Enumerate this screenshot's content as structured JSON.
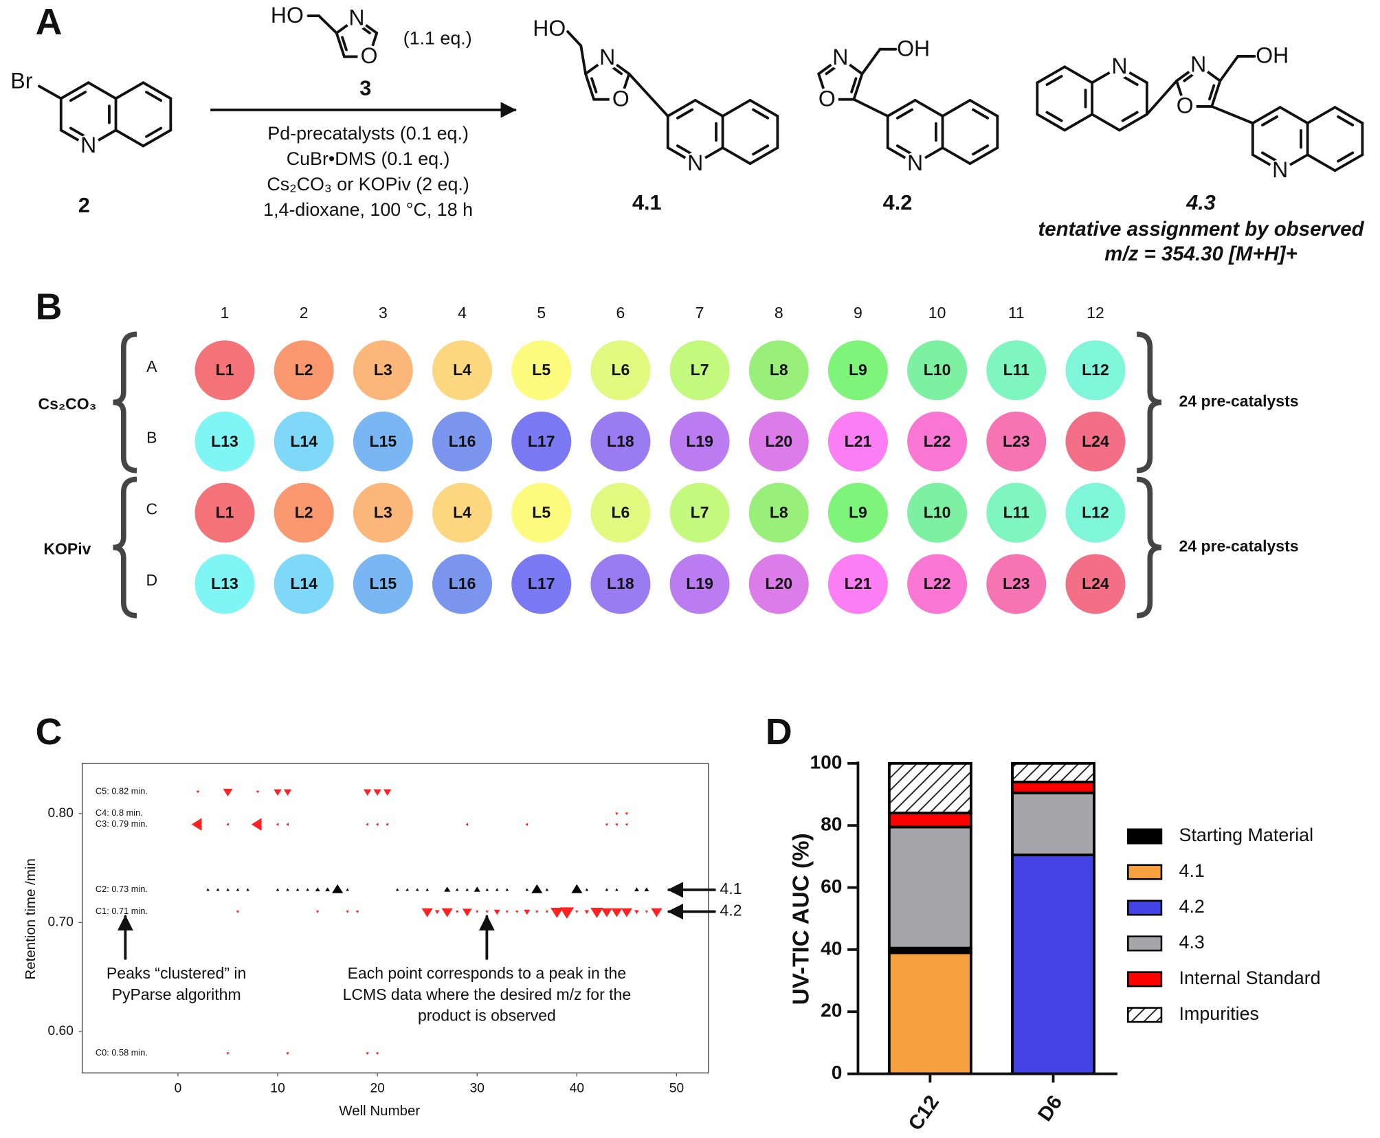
{
  "panel_a": {
    "label": "A",
    "starting_material": {
      "atoms": [
        "Br",
        "N"
      ],
      "number": "2"
    },
    "reagent": {
      "atoms": [
        "HO",
        "N",
        "O"
      ],
      "number": "3",
      "equiv": "(1.1 eq.)"
    },
    "conditions": [
      "Pd-precatalysts (0.1 eq.)",
      "CuBr•DMS (0.1 eq.)",
      "Cs₂CO₃ or KOPiv (2 eq.)",
      "1,4-dioxane, 100 °C, 18 h"
    ],
    "products": [
      {
        "atoms": [
          "HO",
          "N",
          "O",
          "N"
        ],
        "number": "4.1"
      },
      {
        "atoms": [
          "N",
          "OH",
          "O",
          "N"
        ],
        "number": "4.2"
      },
      {
        "atoms": [
          "N",
          "N",
          "OH",
          "O",
          "N"
        ],
        "number": "4.3",
        "note": [
          "tentative assignment by observed",
          "m/z = 354.30 [M+H]+"
        ]
      }
    ]
  },
  "panel_b": {
    "label": "B",
    "columns": [
      "1",
      "2",
      "3",
      "4",
      "5",
      "6",
      "7",
      "8",
      "9",
      "10",
      "11",
      "12"
    ],
    "rows": [
      "A",
      "B",
      "C",
      "D"
    ],
    "groups": [
      {
        "base": "Cs₂CO₃",
        "note": "24 pre-catalysts"
      },
      {
        "base": "KOPiv",
        "note": "24 pre-catalysts"
      }
    ],
    "wells": [
      [
        {
          "label": "L1",
          "color": "#f47378"
        },
        {
          "label": "L2",
          "color": "#f9986f"
        },
        {
          "label": "L3",
          "color": "#fbb679"
        },
        {
          "label": "L4",
          "color": "#fcd77f"
        },
        {
          "label": "L5",
          "color": "#fdfb7e"
        },
        {
          "label": "L6",
          "color": "#e0f97e"
        },
        {
          "label": "L7",
          "color": "#c3f97d"
        },
        {
          "label": "L8",
          "color": "#98ef7a"
        },
        {
          "label": "L9",
          "color": "#7ef57a"
        },
        {
          "label": "L10",
          "color": "#7ef0a2"
        },
        {
          "label": "L11",
          "color": "#7ff5c0"
        },
        {
          "label": "L12",
          "color": "#7ff5d9"
        }
      ],
      [
        {
          "label": "L13",
          "color": "#7ff5f5"
        },
        {
          "label": "L14",
          "color": "#7fd8f7"
        },
        {
          "label": "L15",
          "color": "#7ab5f4"
        },
        {
          "label": "L16",
          "color": "#7b94ee"
        },
        {
          "label": "L17",
          "color": "#7b78f3"
        },
        {
          "label": "L18",
          "color": "#9a7bf2"
        },
        {
          "label": "L19",
          "color": "#bb7cf2"
        },
        {
          "label": "L20",
          "color": "#dc7ce9"
        },
        {
          "label": "L21",
          "color": "#fb7ef4"
        },
        {
          "label": "L22",
          "color": "#f977d2"
        },
        {
          "label": "L23",
          "color": "#f774b2"
        },
        {
          "label": "L24",
          "color": "#f26f86"
        }
      ],
      [
        {
          "label": "L1",
          "color": "#f47378"
        },
        {
          "label": "L2",
          "color": "#f9986f"
        },
        {
          "label": "L3",
          "color": "#fbb679"
        },
        {
          "label": "L4",
          "color": "#fcd77f"
        },
        {
          "label": "L5",
          "color": "#fdfb7e"
        },
        {
          "label": "L6",
          "color": "#e0f97e"
        },
        {
          "label": "L7",
          "color": "#c3f97d"
        },
        {
          "label": "L8",
          "color": "#98ef7a"
        },
        {
          "label": "L9",
          "color": "#7ef57a"
        },
        {
          "label": "L10",
          "color": "#7ef0a2"
        },
        {
          "label": "L11",
          "color": "#7ff5c0"
        },
        {
          "label": "L12",
          "color": "#7ff5d9"
        }
      ],
      [
        {
          "label": "L13",
          "color": "#7ff5f5"
        },
        {
          "label": "L14",
          "color": "#7fd8f7"
        },
        {
          "label": "L15",
          "color": "#7ab5f4"
        },
        {
          "label": "L16",
          "color": "#7b94ee"
        },
        {
          "label": "L17",
          "color": "#7b78f3"
        },
        {
          "label": "L18",
          "color": "#9a7bf2"
        },
        {
          "label": "L19",
          "color": "#bb7cf2"
        },
        {
          "label": "L20",
          "color": "#dc7ce9"
        },
        {
          "label": "L21",
          "color": "#fb7ef4"
        },
        {
          "label": "L22",
          "color": "#f977d2"
        },
        {
          "label": "L23",
          "color": "#f774b2"
        },
        {
          "label": "L24",
          "color": "#f26f86"
        }
      ]
    ]
  },
  "chart_data": [
    {
      "type": "scatter",
      "panel": "C",
      "x_label": "Well Number",
      "y_label": "Retention time /min",
      "xlim": [
        -9.6,
        53.2
      ],
      "ylim": [
        0.562,
        0.846
      ],
      "xticks": [
        0,
        10,
        20,
        30,
        40,
        50
      ],
      "yticks": [
        {
          "value": 0.6,
          "label": "0.60"
        },
        {
          "value": 0.7,
          "label": "0.70"
        },
        {
          "value": 0.8,
          "label": "0.80"
        }
      ],
      "series": [
        {
          "name": "C5: 0.82 min.",
          "color": "#ff2020",
          "marker": "v",
          "x": [
            2,
            5,
            8,
            10,
            11,
            19,
            20,
            21
          ],
          "values": [
            0.82,
            0.82,
            0.82,
            0.82,
            0.82,
            0.82,
            0.82,
            0.82
          ],
          "sizes": [
            2,
            6,
            2,
            5,
            5,
            5,
            5,
            5
          ]
        },
        {
          "name": "C4: 0.8 min.",
          "color": "#ff2020",
          "marker": "v",
          "x": [
            44,
            45
          ],
          "values": [
            0.8,
            0.8
          ],
          "sizes": [
            2,
            2
          ]
        },
        {
          "name": "C3: 0.79 min.",
          "color": "#ff2020",
          "marker": "<",
          "x": [
            2,
            5,
            8,
            10,
            11,
            19,
            20,
            21,
            29,
            35,
            43,
            44,
            45
          ],
          "values": [
            0.79,
            0.79,
            0.79,
            0.79,
            0.79,
            0.79,
            0.79,
            0.79,
            0.79,
            0.79,
            0.79,
            0.79,
            0.79
          ],
          "sizes": [
            8,
            2,
            8,
            2,
            2,
            2,
            2,
            2,
            2,
            2,
            2,
            2,
            2
          ]
        },
        {
          "name": "C2: 0.73 min.",
          "color": "#000000",
          "marker": "^",
          "x": [
            3,
            4,
            5,
            6,
            7,
            10,
            11,
            12,
            13,
            14,
            15,
            16,
            17,
            22,
            23,
            24,
            25,
            27,
            28,
            29,
            30,
            31,
            32,
            33,
            35,
            36,
            37,
            40,
            41,
            43,
            44,
            46,
            47
          ],
          "values": [
            0.73,
            0.73,
            0.73,
            0.73,
            0.73,
            0.73,
            0.73,
            0.73,
            0.73,
            0.73,
            0.73,
            0.73,
            0.73,
            0.73,
            0.73,
            0.73,
            0.73,
            0.73,
            0.73,
            0.73,
            0.73,
            0.73,
            0.73,
            0.73,
            0.73,
            0.73,
            0.73,
            0.73,
            0.73,
            0.73,
            0.73,
            0.73,
            0.73
          ],
          "sizes": [
            2,
            2,
            2,
            2,
            2,
            2,
            2,
            2,
            2,
            3,
            3,
            7,
            2,
            2,
            2,
            2,
            2,
            4,
            2,
            2,
            4,
            2,
            2,
            2,
            2,
            7,
            2,
            7,
            2,
            2,
            2,
            3,
            3
          ]
        },
        {
          "name": "C1: 0.71 min.",
          "color": "#ff2020",
          "marker": "v",
          "x": [
            6,
            14,
            17,
            18,
            25,
            26,
            27,
            28,
            29,
            30,
            31,
            32,
            33,
            34,
            35,
            36,
            37,
            38,
            39,
            40,
            41,
            42,
            43,
            44,
            45,
            46,
            47,
            48
          ],
          "values": [
            0.71,
            0.71,
            0.71,
            0.71,
            0.71,
            0.71,
            0.71,
            0.71,
            0.71,
            0.71,
            0.71,
            0.71,
            0.71,
            0.71,
            0.71,
            0.71,
            0.71,
            0.71,
            0.71,
            0.71,
            0.71,
            0.71,
            0.71,
            0.71,
            0.71,
            0.71,
            0.71,
            0.71
          ],
          "sizes": [
            2,
            2,
            2,
            2,
            7,
            3,
            7,
            2,
            6,
            2,
            2,
            4,
            2,
            2,
            4,
            2,
            2,
            8,
            9,
            2,
            3,
            8,
            7,
            7,
            7,
            3,
            2,
            7
          ]
        },
        {
          "name": "C0: 0.58 min.",
          "color": "#ff2020",
          "marker": "v",
          "x": [
            5,
            11,
            19,
            20
          ],
          "values": [
            0.58,
            0.58,
            0.58,
            0.58
          ],
          "sizes": [
            2,
            2,
            2,
            2
          ]
        }
      ],
      "callouts": [
        "4.1",
        "4.2"
      ],
      "annotations": [
        {
          "lines": [
            "Peaks “clustered” in",
            "PyParse algorithm"
          ]
        },
        {
          "lines": [
            "Each point corresponds to a peak in the",
            "LCMS data where the desired m/z for the",
            "product is observed"
          ]
        }
      ]
    },
    {
      "type": "stacked_bar",
      "panel": "D",
      "y_label": "UV-TIC AUC (%)",
      "categories": [
        "C12",
        "D6"
      ],
      "ylim": [
        0,
        100
      ],
      "yticks": [
        0,
        20,
        40,
        60,
        80,
        100
      ],
      "series": [
        {
          "name": "Starting Material",
          "color": "#000000",
          "values": [
            1.5,
            0
          ]
        },
        {
          "name": "4.1",
          "color": "#f7a040",
          "values": [
            39,
            0
          ]
        },
        {
          "name": "4.2",
          "color": "#4343e6",
          "values": [
            0,
            70.5
          ]
        },
        {
          "name": "4.3",
          "color": "#a6a6aa",
          "values": [
            39,
            20
          ]
        },
        {
          "name": "Internal Standard",
          "color": "#ff0000",
          "values": [
            4.5,
            3.5
          ]
        },
        {
          "name": "Impurities",
          "color": "#ffffff",
          "hatch": true,
          "values": [
            16,
            6
          ]
        }
      ]
    }
  ]
}
